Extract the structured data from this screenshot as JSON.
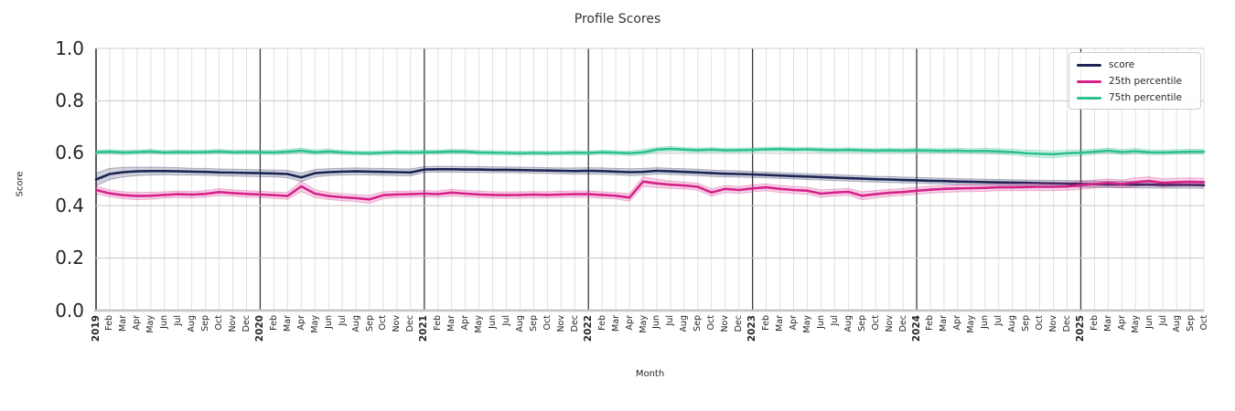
{
  "figure": {
    "title": "Profile Scores",
    "xlabel": "Month",
    "ylabel": "Score"
  },
  "legend": {
    "position": "upper right",
    "items": [
      {
        "label": "score",
        "color": "#1c2554"
      },
      {
        "label": "25th percentile",
        "color": "#d6218a"
      },
      {
        "label": "75th percentile",
        "color": "#2cc091"
      }
    ]
  },
  "colors": {
    "score": "#1c2554",
    "p25": "#d6218a",
    "p75": "#2cc091",
    "month_grid": "#dedede",
    "year_grid": "#3a3a3a",
    "left_spine": "#262626",
    "h_grid": "#cccccc",
    "bottom_spine": "#c4c4c4",
    "text": "#262626"
  },
  "chart_data": {
    "type": "line",
    "title": "Profile Scores",
    "xlabel": "Month",
    "ylabel": "Score",
    "ylim": [
      0.0,
      1.0
    ],
    "yticks": [
      "0.0",
      "0.2",
      "0.4",
      "0.6",
      "0.8",
      "1.0"
    ],
    "grid": true,
    "legend_position": "upper right",
    "x_labels": [
      "2019",
      "Feb",
      "Mar",
      "Apr",
      "May",
      "Jun",
      "Jul",
      "Aug",
      "Sep",
      "Oct",
      "Nov",
      "Dec",
      "2020",
      "Feb",
      "Mar",
      "Apr",
      "May",
      "Jun",
      "Jul",
      "Aug",
      "Sep",
      "Oct",
      "Nov",
      "Dec",
      "2021",
      "Feb",
      "Mar",
      "Apr",
      "May",
      "Jun",
      "Jul",
      "Aug",
      "Sep",
      "Oct",
      "Nov",
      "Dec",
      "2022",
      "Feb",
      "Mar",
      "Apr",
      "May",
      "Jun",
      "Jul",
      "Aug",
      "Sep",
      "Oct",
      "Nov",
      "Dec",
      "2023",
      "Feb",
      "Mar",
      "Apr",
      "May",
      "Jun",
      "Jul",
      "Aug",
      "Sep",
      "Oct",
      "Nov",
      "Dec",
      "2024",
      "Feb",
      "Mar",
      "Apr",
      "May",
      "Jun",
      "Jul",
      "Aug",
      "Sep",
      "Oct",
      "Nov",
      "Dec",
      "2025",
      "Feb",
      "Mar",
      "Apr",
      "May",
      "Jun",
      "Jul",
      "Aug",
      "Sep",
      "Oct"
    ],
    "series": [
      {
        "name": "score",
        "color": "#1c2554",
        "values": [
          0.5,
          0.521,
          0.528,
          0.531,
          0.532,
          0.532,
          0.531,
          0.53,
          0.529,
          0.527,
          0.526,
          0.525,
          0.524,
          0.523,
          0.521,
          0.508,
          0.524,
          0.528,
          0.53,
          0.531,
          0.53,
          0.529,
          0.528,
          0.527,
          0.538,
          0.539,
          0.539,
          0.538,
          0.538,
          0.537,
          0.537,
          0.536,
          0.535,
          0.534,
          0.533,
          0.532,
          0.533,
          0.532,
          0.53,
          0.528,
          0.529,
          0.533,
          0.531,
          0.529,
          0.527,
          0.524,
          0.522,
          0.521,
          0.519,
          0.517,
          0.515,
          0.513,
          0.511,
          0.509,
          0.507,
          0.505,
          0.503,
          0.501,
          0.5,
          0.498,
          0.497,
          0.495,
          0.494,
          0.492,
          0.491,
          0.49,
          0.489,
          0.488,
          0.487,
          0.486,
          0.485,
          0.484,
          0.483,
          0.482,
          0.481,
          0.481,
          0.48,
          0.48,
          0.479,
          0.479,
          0.479,
          0.478
        ],
        "band": [
          0.024,
          0.021,
          0.018,
          0.016,
          0.015,
          0.014,
          0.014,
          0.013,
          0.013,
          0.013,
          0.013,
          0.013,
          0.013,
          0.013,
          0.014,
          0.016,
          0.014,
          0.013,
          0.013,
          0.013,
          0.013,
          0.013,
          0.013,
          0.013,
          0.011,
          0.011,
          0.011,
          0.011,
          0.011,
          0.011,
          0.011,
          0.011,
          0.011,
          0.011,
          0.011,
          0.012,
          0.012,
          0.012,
          0.012,
          0.013,
          0.013,
          0.012,
          0.012,
          0.012,
          0.012,
          0.012,
          0.012,
          0.012,
          0.011,
          0.011,
          0.011,
          0.011,
          0.011,
          0.011,
          0.011,
          0.011,
          0.011,
          0.011,
          0.011,
          0.011,
          0.011,
          0.011,
          0.011,
          0.011,
          0.011,
          0.011,
          0.011,
          0.011,
          0.011,
          0.011,
          0.011,
          0.012,
          0.012,
          0.012,
          0.012,
          0.012,
          0.012,
          0.012,
          0.012,
          0.012,
          0.012,
          0.012
        ]
      },
      {
        "name": "25th percentile",
        "color": "#d6218a",
        "values": [
          0.46,
          0.447,
          0.44,
          0.437,
          0.438,
          0.441,
          0.444,
          0.442,
          0.445,
          0.452,
          0.448,
          0.445,
          0.443,
          0.44,
          0.437,
          0.474,
          0.446,
          0.437,
          0.432,
          0.429,
          0.424,
          0.44,
          0.443,
          0.444,
          0.446,
          0.444,
          0.45,
          0.446,
          0.443,
          0.441,
          0.44,
          0.441,
          0.442,
          0.441,
          0.443,
          0.444,
          0.444,
          0.441,
          0.438,
          0.431,
          0.492,
          0.485,
          0.48,
          0.477,
          0.472,
          0.45,
          0.464,
          0.46,
          0.466,
          0.47,
          0.464,
          0.46,
          0.457,
          0.446,
          0.45,
          0.453,
          0.438,
          0.444,
          0.449,
          0.452,
          0.457,
          0.461,
          0.464,
          0.466,
          0.467,
          0.468,
          0.47,
          0.47,
          0.471,
          0.472,
          0.472,
          0.473,
          0.478,
          0.483,
          0.487,
          0.483,
          0.49,
          0.494,
          0.487,
          0.49,
          0.491,
          0.49
        ],
        "band": [
          0.015,
          0.013,
          0.013,
          0.014,
          0.013,
          0.012,
          0.012,
          0.012,
          0.012,
          0.013,
          0.012,
          0.012,
          0.012,
          0.012,
          0.013,
          0.02,
          0.015,
          0.013,
          0.013,
          0.013,
          0.015,
          0.013,
          0.012,
          0.012,
          0.012,
          0.012,
          0.013,
          0.012,
          0.012,
          0.012,
          0.012,
          0.012,
          0.012,
          0.012,
          0.012,
          0.012,
          0.012,
          0.012,
          0.012,
          0.014,
          0.018,
          0.016,
          0.014,
          0.013,
          0.013,
          0.014,
          0.013,
          0.013,
          0.013,
          0.013,
          0.013,
          0.013,
          0.013,
          0.014,
          0.013,
          0.013,
          0.015,
          0.014,
          0.013,
          0.013,
          0.013,
          0.013,
          0.013,
          0.013,
          0.013,
          0.013,
          0.013,
          0.013,
          0.014,
          0.014,
          0.014,
          0.014,
          0.015,
          0.015,
          0.015,
          0.015,
          0.016,
          0.016,
          0.015,
          0.015,
          0.015,
          0.015
        ]
      },
      {
        "name": "75th percentile",
        "color": "#2cc091",
        "values": [
          0.604,
          0.606,
          0.603,
          0.605,
          0.607,
          0.603,
          0.605,
          0.604,
          0.605,
          0.607,
          0.604,
          0.605,
          0.604,
          0.603,
          0.606,
          0.61,
          0.604,
          0.607,
          0.603,
          0.601,
          0.6,
          0.602,
          0.604,
          0.603,
          0.604,
          0.605,
          0.607,
          0.606,
          0.603,
          0.602,
          0.601,
          0.6,
          0.601,
          0.6,
          0.601,
          0.602,
          0.601,
          0.604,
          0.602,
          0.6,
          0.604,
          0.614,
          0.617,
          0.614,
          0.612,
          0.614,
          0.611,
          0.612,
          0.613,
          0.615,
          0.616,
          0.614,
          0.615,
          0.613,
          0.612,
          0.613,
          0.611,
          0.61,
          0.611,
          0.61,
          0.611,
          0.61,
          0.609,
          0.61,
          0.608,
          0.609,
          0.607,
          0.605,
          0.6,
          0.598,
          0.596,
          0.6,
          0.602,
          0.606,
          0.61,
          0.605,
          0.608,
          0.604,
          0.603,
          0.605,
          0.606,
          0.606
        ],
        "band": [
          0.008,
          0.008,
          0.008,
          0.008,
          0.008,
          0.008,
          0.008,
          0.008,
          0.008,
          0.008,
          0.008,
          0.008,
          0.008,
          0.008,
          0.009,
          0.01,
          0.009,
          0.009,
          0.008,
          0.008,
          0.008,
          0.008,
          0.008,
          0.008,
          0.008,
          0.008,
          0.008,
          0.008,
          0.008,
          0.008,
          0.008,
          0.008,
          0.008,
          0.008,
          0.008,
          0.008,
          0.008,
          0.008,
          0.008,
          0.009,
          0.01,
          0.009,
          0.009,
          0.008,
          0.008,
          0.008,
          0.008,
          0.008,
          0.008,
          0.008,
          0.008,
          0.008,
          0.008,
          0.008,
          0.008,
          0.008,
          0.008,
          0.008,
          0.008,
          0.008,
          0.008,
          0.008,
          0.008,
          0.009,
          0.009,
          0.01,
          0.01,
          0.011,
          0.012,
          0.013,
          0.013,
          0.012,
          0.011,
          0.01,
          0.01,
          0.01,
          0.01,
          0.009,
          0.009,
          0.009,
          0.009,
          0.009
        ]
      }
    ]
  }
}
